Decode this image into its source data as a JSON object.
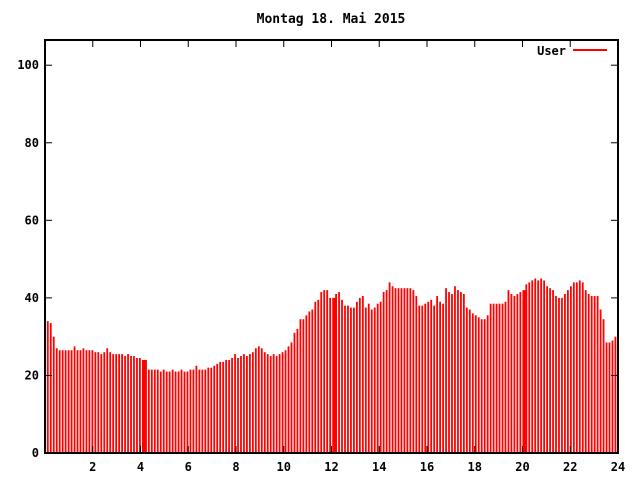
{
  "chart_data": {
    "type": "bar",
    "title": "Montag 18. Mai 2015",
    "xlabel": "",
    "ylabel": "",
    "xlim": [
      0,
      24
    ],
    "ylim": [
      0,
      106.5
    ],
    "x_ticks": [
      2,
      4,
      6,
      8,
      10,
      12,
      14,
      16,
      18,
      20,
      22,
      24
    ],
    "y_ticks": [
      0,
      20,
      40,
      60,
      80,
      100
    ],
    "grid": false,
    "legend_position": "top-right-inside",
    "x_unit": "hour of day",
    "sample_step_hours": 0.125,
    "first_sample_hour": 0.1,
    "merged_bar_indices": [
      32,
      96,
      160
    ],
    "series": [
      {
        "name": "User",
        "style": "impulses",
        "color": "#ff0000",
        "values": [
          34,
          33.5,
          30,
          27,
          26.5,
          26.5,
          26.5,
          26.5,
          26.5,
          27.5,
          26.5,
          26.5,
          27,
          26.5,
          26.5,
          26.5,
          26,
          26,
          25.5,
          26,
          27,
          26,
          25.5,
          25.5,
          25.5,
          25.5,
          25,
          25.5,
          25,
          25,
          24.5,
          24.5,
          24,
          24,
          21.5,
          21.5,
          21.5,
          21.5,
          21,
          21.5,
          21,
          21,
          21.5,
          21,
          21,
          21.5,
          21,
          21,
          21.5,
          21.5,
          22.5,
          21.5,
          21.5,
          21.5,
          22,
          22,
          22.5,
          23,
          23.5,
          23.5,
          24,
          24,
          24.5,
          25.5,
          24.5,
          25,
          25.5,
          25,
          25.5,
          26,
          27,
          27.5,
          27,
          26,
          25.5,
          25,
          25.5,
          25,
          25.5,
          26,
          26.5,
          27.5,
          28.5,
          31,
          32,
          34.5,
          34.5,
          35.5,
          36.5,
          37,
          39,
          39.5,
          41.5,
          42,
          42,
          40,
          40,
          41,
          41.5,
          39.5,
          38,
          38,
          37.5,
          37.5,
          39,
          40,
          40.5,
          37.5,
          38.5,
          37,
          37.5,
          38.5,
          39,
          41.5,
          42,
          44,
          43,
          42.5,
          42.5,
          42.5,
          42.5,
          42.5,
          42.5,
          42,
          40.5,
          38,
          38,
          38.5,
          39,
          39.5,
          38,
          40.5,
          39,
          38.5,
          42.5,
          41.5,
          41,
          43,
          42,
          41.5,
          41,
          37.5,
          37,
          36,
          35.5,
          35,
          34.5,
          34.5,
          35.5,
          38.5,
          38.5,
          38.5,
          38.5,
          38.5,
          39,
          42,
          41,
          40.5,
          41,
          41.5,
          42,
          43.5,
          44,
          44.5,
          45,
          44.5,
          45,
          44.5,
          43,
          42.5,
          42,
          40.5,
          40,
          40,
          41,
          42,
          43,
          44,
          44,
          44.5,
          44,
          42,
          41,
          40.5,
          40.5,
          40.5,
          37,
          34.5,
          28.5,
          28.5,
          29,
          30
        ]
      }
    ],
    "colors": {
      "background": "#ffffff",
      "axis": "#000000",
      "text": "#000000",
      "series_user": "#ff0000"
    }
  }
}
